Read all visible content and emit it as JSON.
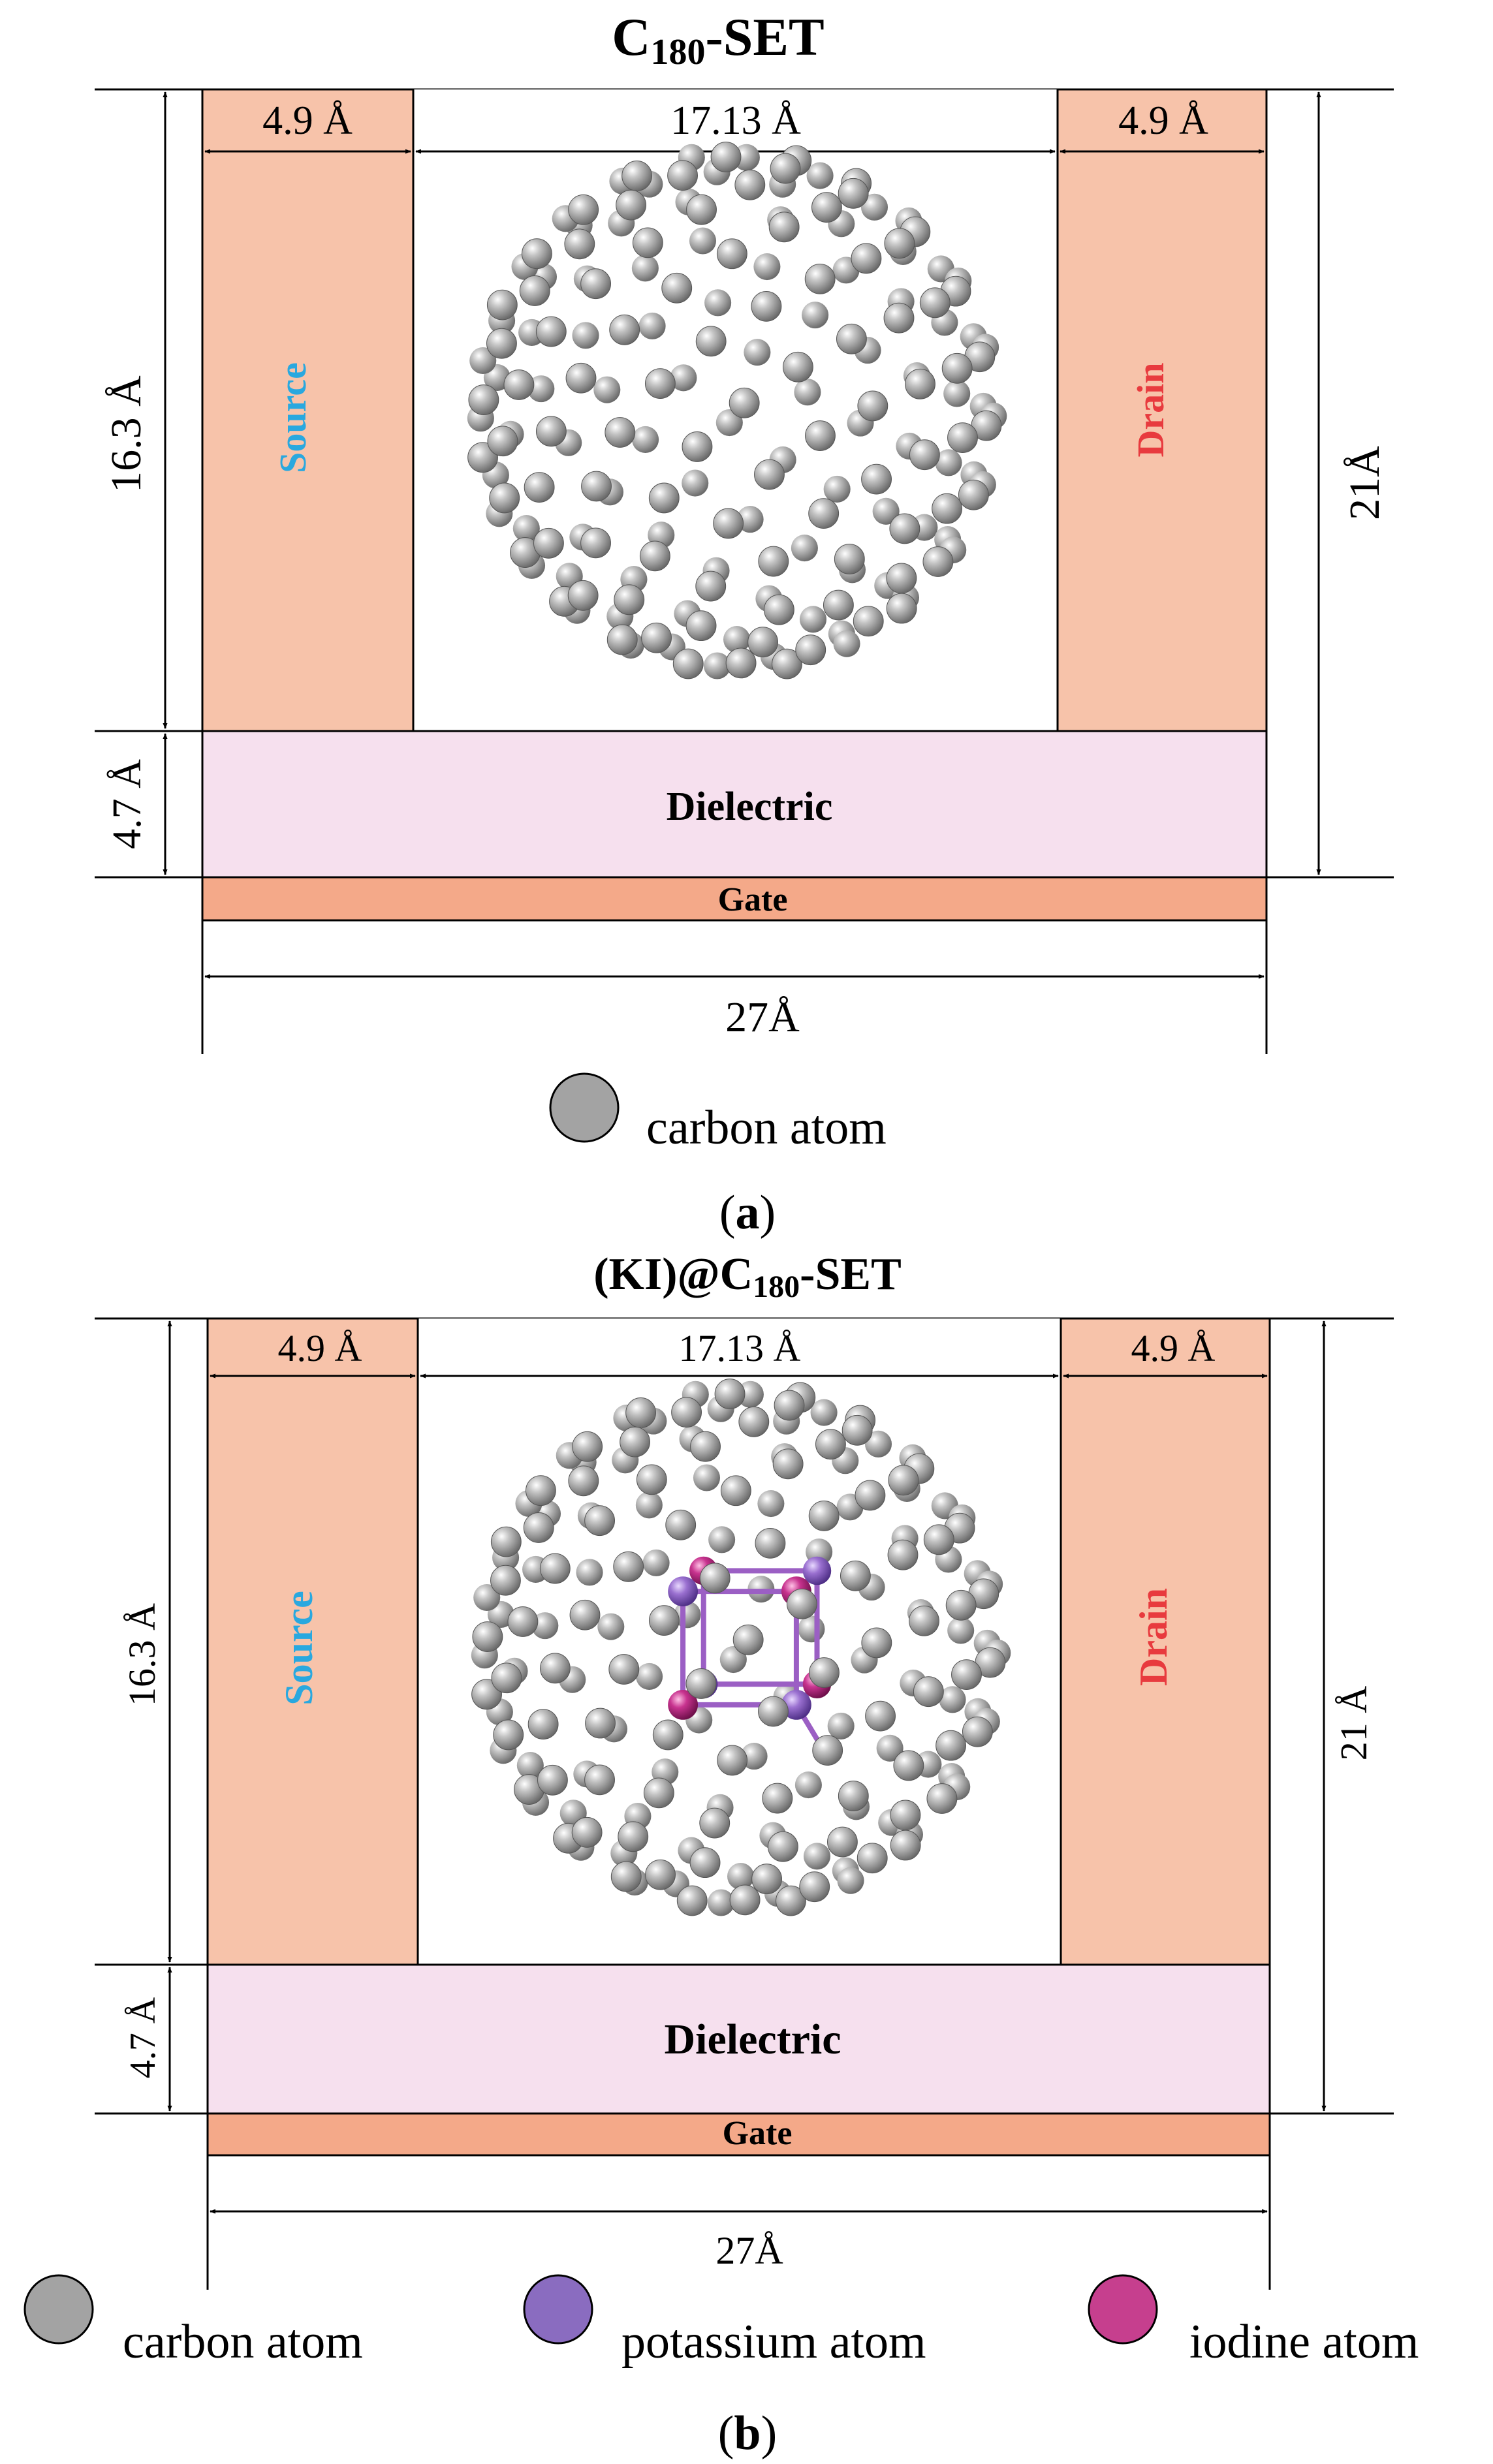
{
  "panel_a": {
    "title_main": "C",
    "title_sub": "180",
    "title_tail": "-SET",
    "dim_source_width": "4.9 Å",
    "dim_gap_width": "17.13 Å",
    "dim_drain_width": "4.9 Å",
    "dim_electrode_height": "16.3 Å",
    "dim_dielectric_height": "4.7 Å",
    "dim_total_height": "21Å",
    "dim_total_width": "27Å",
    "source_label": "Source",
    "drain_label": "Drain",
    "dielectric_label": "Dielectric",
    "gate_label": "Gate",
    "legend": [
      {
        "label": "carbon atom",
        "color": "#a3a3a3"
      }
    ],
    "caption_open": "(",
    "caption_letter": "a",
    "caption_close": ")"
  },
  "panel_b": {
    "title_head": "(KI)@C",
    "title_sub": "180",
    "title_tail": "-SET",
    "dim_source_width": "4.9 Å",
    "dim_gap_width": "17.13 Å",
    "dim_drain_width": "4.9 Å",
    "dim_electrode_height": "16.3 Å",
    "dim_dielectric_height": "4.7 Å",
    "dim_total_height": "21 Å",
    "dim_total_width": "27Å",
    "source_label": "Source",
    "drain_label": "Drain",
    "dielectric_label": "Dielectric",
    "gate_label": "Gate",
    "legend": [
      {
        "label": "carbon atom",
        "color": "#a3a3a3"
      },
      {
        "label": "potassium atom",
        "color": "#8a6cc0"
      },
      {
        "label": "iodine atom",
        "color": "#c63f8e"
      }
    ],
    "caption_open": "(",
    "caption_letter": "b",
    "caption_close": ")"
  },
  "colors": {
    "electrode": "#f7c3aa",
    "dielectric": "#f6e0ee",
    "gate": "#f4a989",
    "source_text": "#29a8df",
    "drain_text": "#e83a3e",
    "atom_carbon": "#a3a3a3",
    "atom_potassium": "#8a6cc0",
    "atom_iodine": "#c63f8e",
    "ki_bond": "#9b5fc4"
  }
}
